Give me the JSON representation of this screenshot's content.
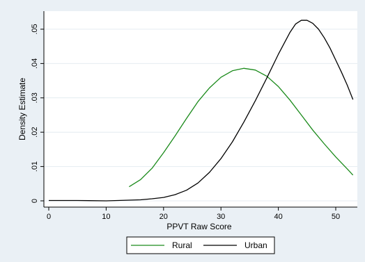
{
  "chart_data": {
    "type": "line",
    "title": "",
    "xlabel": "PPVT Raw Score",
    "ylabel": "Density Estimate",
    "xlim": [
      0,
      53
    ],
    "ylim": [
      0,
      0.056
    ],
    "x_ticks": [
      0,
      10,
      20,
      30,
      40,
      50
    ],
    "x_tick_labels": [
      "0",
      "10",
      "20",
      "30",
      "40",
      "50"
    ],
    "y_ticks": [
      0,
      0.01,
      0.02,
      0.03,
      0.04,
      0.05
    ],
    "y_tick_labels": [
      "0",
      ".01",
      ".02",
      ".03",
      ".04",
      ".05"
    ],
    "grid": "horizontal",
    "legend_position": "bottom",
    "series": [
      {
        "name": "Rural",
        "color": "#1a8a1a",
        "points": [
          [
            14,
            0.0041
          ],
          [
            16,
            0.0062
          ],
          [
            18,
            0.0095
          ],
          [
            20,
            0.014
          ],
          [
            22,
            0.0189
          ],
          [
            24,
            0.024
          ],
          [
            26,
            0.0289
          ],
          [
            28,
            0.0329
          ],
          [
            30,
            0.036
          ],
          [
            32,
            0.0379
          ],
          [
            34,
            0.0386
          ],
          [
            36,
            0.0381
          ],
          [
            38,
            0.0363
          ],
          [
            40,
            0.0333
          ],
          [
            42,
            0.0294
          ],
          [
            44,
            0.025
          ],
          [
            46,
            0.0206
          ],
          [
            48,
            0.0166
          ],
          [
            50,
            0.0128
          ],
          [
            52,
            0.0093
          ],
          [
            53,
            0.0075
          ]
        ]
      },
      {
        "name": "Urban",
        "color": "#000000",
        "points": [
          [
            0,
            0.0001
          ],
          [
            5,
            0.0001
          ],
          [
            10,
            0.0
          ],
          [
            12,
            0.0001
          ],
          [
            14,
            0.0002
          ],
          [
            16,
            0.0003
          ],
          [
            18,
            0.0006
          ],
          [
            20,
            0.001
          ],
          [
            22,
            0.0018
          ],
          [
            24,
            0.0031
          ],
          [
            26,
            0.0052
          ],
          [
            28,
            0.0083
          ],
          [
            30,
            0.0123
          ],
          [
            32,
            0.0172
          ],
          [
            34,
            0.023
          ],
          [
            36,
            0.0292
          ],
          [
            38,
            0.0358
          ],
          [
            40,
            0.0427
          ],
          [
            42,
            0.049
          ],
          [
            43,
            0.0515
          ],
          [
            44,
            0.0526
          ],
          [
            45,
            0.0526
          ],
          [
            46,
            0.0517
          ],
          [
            47,
            0.05
          ],
          [
            48,
            0.0475
          ],
          [
            49,
            0.0445
          ],
          [
            50,
            0.041
          ],
          [
            51,
            0.0375
          ],
          [
            52,
            0.0337
          ],
          [
            53,
            0.0295
          ]
        ]
      }
    ]
  },
  "legend": {
    "items": [
      {
        "label": "Rural",
        "color": "#1a8a1a"
      },
      {
        "label": "Urban",
        "color": "#000000"
      }
    ]
  },
  "colors": {
    "background": "#eaf0f5",
    "plot_background": "#ffffff",
    "grid": "#e4ebf1"
  }
}
